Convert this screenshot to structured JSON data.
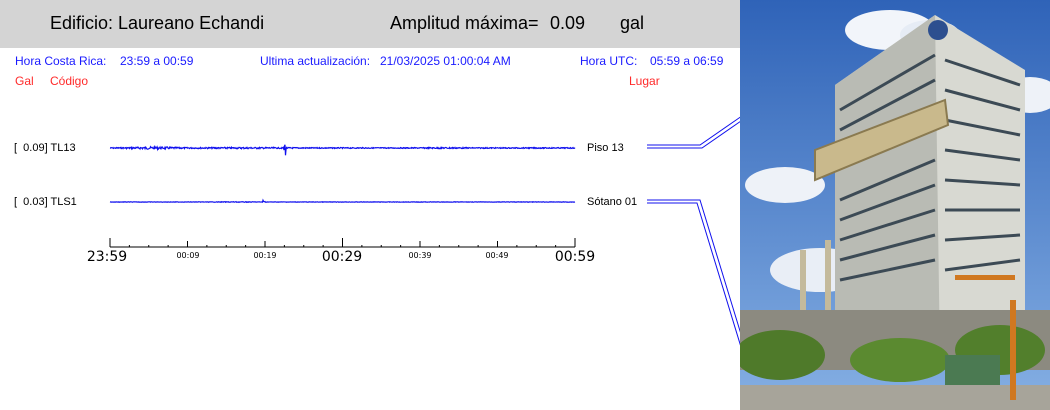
{
  "header": {
    "building_label": "Edificio: Laureano Echandi",
    "amplitude_label": "Amplitud máxima=",
    "amplitude_value": "0.09",
    "amplitude_unit": "gal"
  },
  "info": {
    "local_time_label": "Hora Costa Rica:",
    "local_time_range": "23:59 a 00:59",
    "update_label": "Ultima actualización:",
    "update_value": "21/03/2025 01:00:04 AM",
    "utc_label": "Hora UTC:",
    "utc_range": "05:59 a 06:59"
  },
  "columns": {
    "gal": "Gal",
    "code": "Código",
    "place": "Lugar"
  },
  "colors": {
    "trace": "#1010ee",
    "info_text": "#1a1aff",
    "column_text": "#ff2a2a",
    "header_bg": "#d4d4d4"
  },
  "chart_data": {
    "type": "line",
    "x_ticks_major": [
      "23:59",
      "00:29",
      "00:59"
    ],
    "x_ticks_minor": [
      "00:09",
      "00:19",
      "00:39",
      "00:49"
    ],
    "series": [
      {
        "name": "TL13",
        "gal": "0.09",
        "gal_text": "[  0.09] TL13",
        "place": "Piso 13",
        "peak_amplitude_gal": 0.09
      },
      {
        "name": "TLS1",
        "gal": "0.03",
        "gal_text": "[  0.03] TLS1",
        "place": "Sótano 01",
        "peak_amplitude_gal": 0.03
      }
    ]
  }
}
